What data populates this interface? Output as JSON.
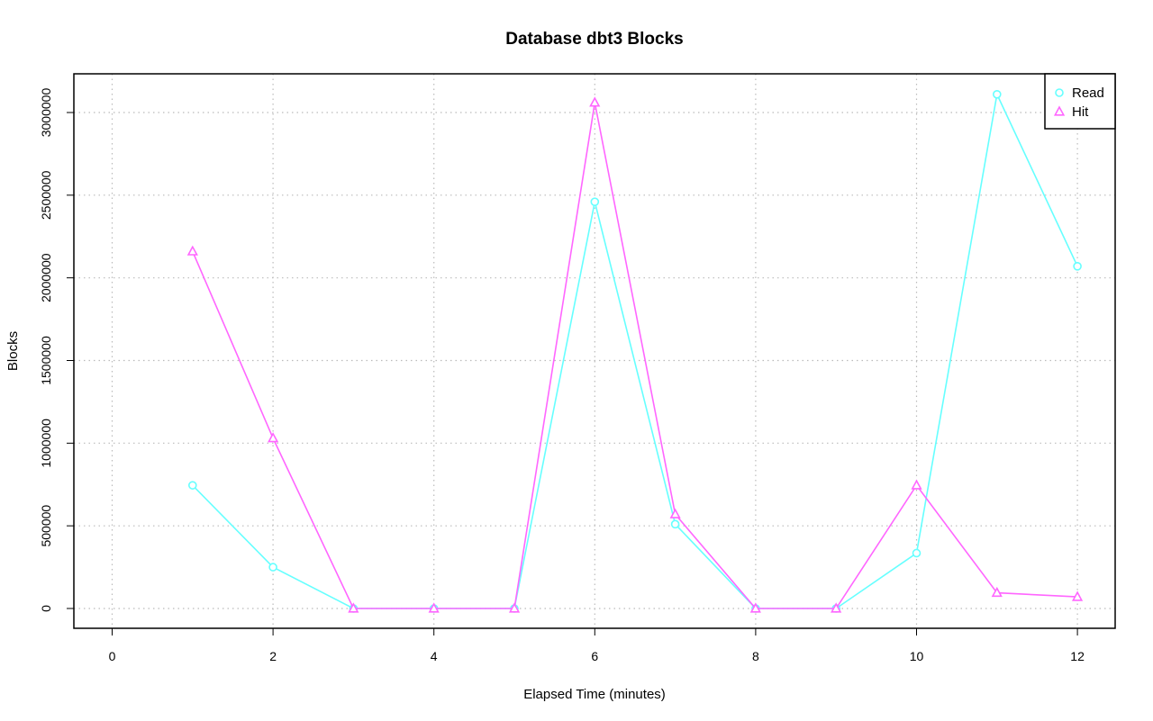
{
  "chart_data": {
    "type": "line",
    "title": "Database dbt3 Blocks",
    "xlabel": "Elapsed Time (minutes)",
    "ylabel": "Blocks",
    "xlim": [
      0,
      12
    ],
    "ylim": [
      0,
      3000000
    ],
    "x_ticks": [
      "0",
      "2",
      "4",
      "6",
      "8",
      "10",
      "12"
    ],
    "y_ticks": [
      "0",
      "500000",
      "1000000",
      "1500000",
      "2000000",
      "2500000",
      "3000000"
    ],
    "grid": true,
    "legend_position": "top-right",
    "x": [
      1,
      2,
      3,
      4,
      5,
      6,
      7,
      8,
      9,
      10,
      11,
      12
    ],
    "series": [
      {
        "name": "Read",
        "color": "#66ffff",
        "marker": "circle",
        "values": [
          745000,
          250000,
          0,
          0,
          0,
          2460000,
          510000,
          0,
          0,
          335000,
          3110000,
          2070000
        ]
      },
      {
        "name": "Hit",
        "color": "#ff66ff",
        "marker": "triangle",
        "values": [
          2160000,
          1030000,
          0,
          0,
          0,
          3060000,
          570000,
          0,
          0,
          745000,
          95000,
          70000
        ]
      }
    ]
  }
}
